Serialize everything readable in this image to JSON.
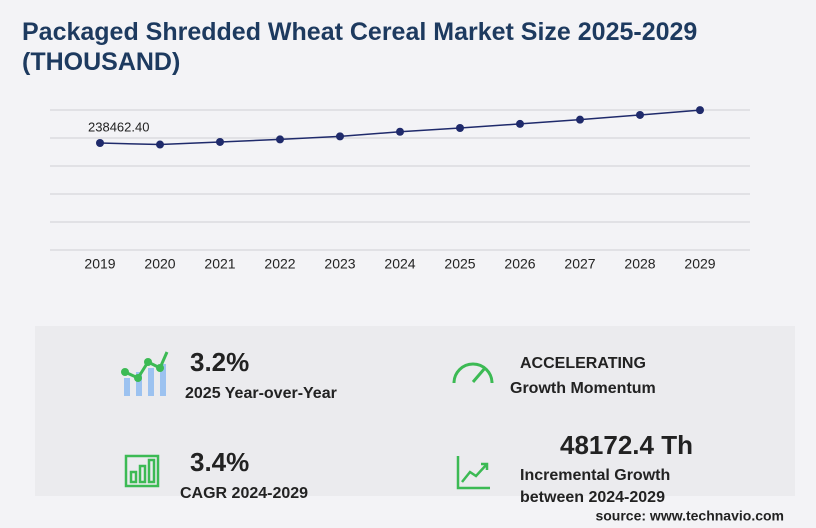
{
  "chart_data": {
    "type": "line",
    "title": "Packaged Shredded Wheat Cereal Market Size 2025-2029",
    "subtitle": "(THOUSAND)",
    "categories": [
      "2019",
      "2020",
      "2021",
      "2022",
      "2023",
      "2024",
      "2025",
      "2026",
      "2027",
      "2028",
      "2029"
    ],
    "series": [
      {
        "color": "#1f2a6b",
        "values": [
          238462.4,
          235000,
          240800,
          246500,
          253200,
          263500,
          271900,
          281000,
          290500,
          300900,
          311700
        ],
        "value_labels": [
          "238462.40",
          null,
          null,
          null,
          null,
          null,
          null,
          null,
          null,
          null,
          null
        ]
      }
    ],
    "ylim": [
      0,
      312000
    ],
    "grid": true
  },
  "stats": [
    {
      "value": "3.2%",
      "label": [
        "2025 Year-over-Year"
      ]
    },
    {
      "value": "ACCELERATING",
      "label": [
        "Growth Momentum"
      ]
    },
    {
      "value": "3.4%",
      "label": [
        "CAGR 2024-2029"
      ]
    },
    {
      "value": "48172.4 Th",
      "label": [
        "Incremental Growth",
        "between 2024-2029"
      ]
    }
  ],
  "source": "source: www.technavio.com"
}
